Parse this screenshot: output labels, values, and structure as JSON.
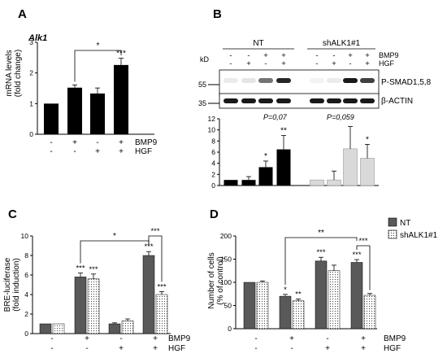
{
  "colors": {
    "black": "#000000",
    "dark_gray": "#595959",
    "light_gray": "#d9d9d9",
    "white": "#ffffff"
  },
  "panels": {
    "A": {
      "letter": "A",
      "title": "Alk1",
      "ylabel": "mRNA levels",
      "ylabel2": "(fold change)",
      "sig_bracket": "*"
    },
    "B": {
      "letter": "B",
      "group_nt": "NT",
      "group_sh": "shALK1#1",
      "kd": "kD",
      "mw_55": "55",
      "mw_35": "35",
      "band_psmad": "P-SMAD1,5,8",
      "band_actin": "β-ACTIN",
      "p_nt": "P=0,07",
      "p_sh": "P=0,059"
    },
    "C": {
      "letter": "C",
      "ylabel": "BRE-luciferase",
      "ylabel2": "(fold induction)",
      "sig_bracket": "*",
      "sig_pair": "***"
    },
    "D": {
      "letter": "D",
      "ylabel": "Number of cells",
      "ylabel2": "(% of control)",
      "sig_bracket": "**",
      "sig_pair": "***",
      "legend": [
        {
          "name": "NT",
          "color": "#595959"
        },
        {
          "name": "shALK1#1",
          "color": "#ffffff",
          "pattern": "dots"
        }
      ]
    }
  },
  "treatment_labels": {
    "bmp9": "BMP9",
    "hgf": "HGF"
  },
  "chart_data": [
    {
      "panel": "A",
      "type": "bar",
      "title": "Alk1",
      "ylabel": "mRNA levels (fold change)",
      "ylim": [
        0,
        3
      ],
      "yticks": [
        "0",
        "1",
        "2",
        "3"
      ],
      "conditions": [
        {
          "bmp9": "-",
          "hgf": "-"
        },
        {
          "bmp9": "+",
          "hgf": "-"
        },
        {
          "bmp9": "-",
          "hgf": "+"
        },
        {
          "bmp9": "+",
          "hgf": "+"
        }
      ],
      "series": [
        {
          "values": [
            1.0,
            1.52,
            1.33,
            2.26
          ],
          "errors": [
            0,
            0.09,
            0.18,
            0.22
          ],
          "color": "#000000"
        }
      ],
      "annotations": [
        "",
        "",
        "",
        "***"
      ]
    },
    {
      "panel": "B",
      "type": "bar",
      "ylim": [
        0,
        12
      ],
      "yticks": [
        "0",
        "2",
        "4",
        "6",
        "8",
        "10",
        "12"
      ],
      "conditions_nt": [
        {
          "bmp9": "-",
          "hgf": "-"
        },
        {
          "bmp9": "-",
          "hgf": "+"
        },
        {
          "bmp9": "+",
          "hgf": "-"
        },
        {
          "bmp9": "+",
          "hgf": "+"
        }
      ],
      "conditions_sh": [
        {
          "bmp9": "-",
          "hgf": "-"
        },
        {
          "bmp9": "-",
          "hgf": "+"
        },
        {
          "bmp9": "+",
          "hgf": "-"
        },
        {
          "bmp9": "+",
          "hgf": "+"
        }
      ],
      "series": [
        {
          "group": "NT",
          "values": [
            1.0,
            1.0,
            3.3,
            6.5
          ],
          "errors": [
            0,
            0.6,
            1.1,
            2.5
          ],
          "color": "#000000",
          "annotations": [
            "",
            "",
            "*",
            "**"
          ]
        },
        {
          "group": "shALK1#1",
          "values": [
            1.0,
            1.0,
            6.6,
            4.9
          ],
          "errors": [
            0,
            1.6,
            4.0,
            2.5
          ],
          "color": "#d9d9d9",
          "annotations": [
            "",
            "",
            "",
            "*"
          ]
        }
      ]
    },
    {
      "panel": "C",
      "type": "bar",
      "ylabel": "BRE-luciferase (fold induction)",
      "ylim": [
        0,
        10
      ],
      "yticks": [
        "0",
        "2",
        "4",
        "6",
        "8",
        "10"
      ],
      "conditions": [
        {
          "bmp9": "-",
          "hgf": "-"
        },
        {
          "bmp9": "+",
          "hgf": "-"
        },
        {
          "bmp9": "-",
          "hgf": "+"
        },
        {
          "bmp9": "+",
          "hgf": "+"
        }
      ],
      "series": [
        {
          "name": "NT",
          "values": [
            1.0,
            5.8,
            1.0,
            8.0
          ],
          "errors": [
            0,
            0.4,
            0.1,
            0.4
          ],
          "annotations": [
            "",
            "***",
            "",
            "***"
          ]
        },
        {
          "name": "shALK1#1",
          "values": [
            1.0,
            5.6,
            1.3,
            4.0
          ],
          "errors": [
            0,
            0.5,
            0.2,
            0.3
          ],
          "annotations": [
            "",
            "***",
            "",
            "***"
          ]
        }
      ]
    },
    {
      "panel": "D",
      "type": "bar",
      "ylabel": "Number of cells (% of control)",
      "ylim": [
        0,
        200
      ],
      "yticks": [
        "0",
        "50",
        "100",
        "150",
        "200"
      ],
      "conditions": [
        {
          "bmp9": "-",
          "hgf": "-"
        },
        {
          "bmp9": "+",
          "hgf": "-"
        },
        {
          "bmp9": "-",
          "hgf": "+"
        },
        {
          "bmp9": "+",
          "hgf": "+"
        }
      ],
      "series": [
        {
          "name": "NT",
          "values": [
            100,
            70,
            146,
            143
          ],
          "errors": [
            0,
            4,
            8,
            6
          ],
          "annotations": [
            "",
            "*",
            "***",
            "***"
          ]
        },
        {
          "name": "shALK1#1",
          "values": [
            100,
            60,
            125,
            72
          ],
          "errors": [
            3,
            4,
            12,
            4
          ],
          "annotations": [
            "",
            "**",
            "",
            ""
          ]
        }
      ],
      "legend_position": "top-right"
    }
  ]
}
